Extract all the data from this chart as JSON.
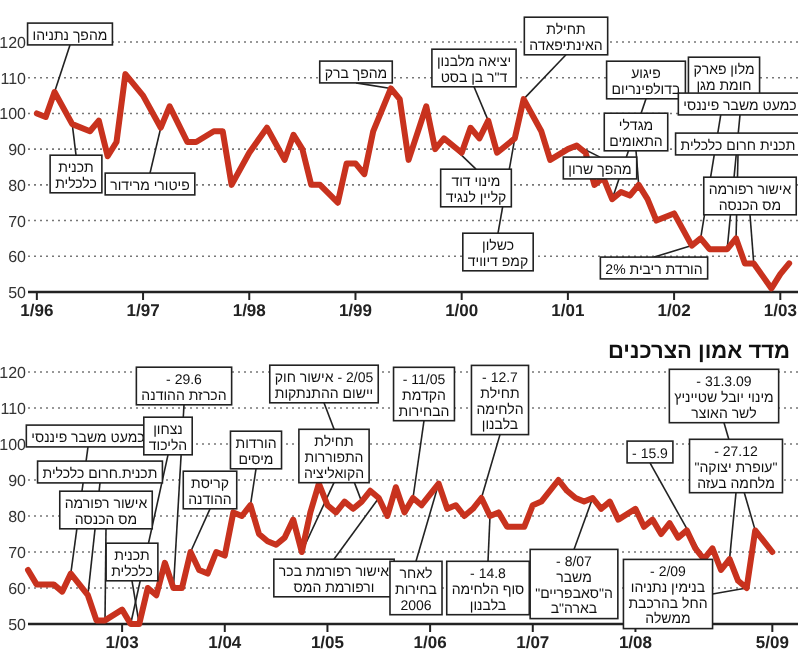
{
  "chart_data": [
    {
      "type": "line",
      "line_style": "solid",
      "marker": "none",
      "grid": "y",
      "xlim": [
        "1995-12",
        "2003-03"
      ],
      "ylim": [
        50,
        120
      ],
      "yticks": [
        50,
        60,
        70,
        80,
        90,
        100,
        110,
        120
      ],
      "xticks": [
        {
          "value": "1996-01",
          "label": "1/96"
        },
        {
          "value": "1997-01",
          "label": "1/97"
        },
        {
          "value": "1998-01",
          "label": "1/98"
        },
        {
          "value": "1999-01",
          "label": "1/99"
        },
        {
          "value": "2000-01",
          "label": "1/00"
        },
        {
          "value": "2001-01",
          "label": "1/01"
        },
        {
          "value": "2002-01",
          "label": "1/02"
        },
        {
          "value": "2003-01",
          "label": "1/03"
        }
      ],
      "x": [
        "1996-01",
        "1996-02",
        "1996-03",
        "1996-05",
        "1996-07",
        "1996-08",
        "1996-09",
        "1996-10",
        "1996-11",
        "1997-01",
        "1997-03",
        "1997-04",
        "1997-05",
        "1997-06",
        "1997-07",
        "1997-09",
        "1997-10",
        "1997-11",
        "1998-01",
        "1998-03",
        "1998-05",
        "1998-06",
        "1998-07",
        "1998-08",
        "1998-09",
        "1998-11",
        "1998-12",
        "1999-01",
        "1999-02",
        "1999-03",
        "1999-05",
        "1999-06",
        "1999-07",
        "1999-09",
        "1999-10",
        "1999-11",
        "2000-01",
        "2000-02",
        "2000-03",
        "2000-04",
        "2000-05",
        "2000-07",
        "2000-08",
        "2000-10",
        "2000-11",
        "2001-01",
        "2001-02",
        "2001-03",
        "2001-04",
        "2001-05",
        "2001-06",
        "2001-07",
        "2001-08",
        "2001-09",
        "2001-10",
        "2001-11",
        "2002-01",
        "2002-03",
        "2002-04",
        "2002-05",
        "2002-07",
        "2002-08",
        "2002-09",
        "2002-10",
        "2002-12",
        "2003-01",
        "2003-02"
      ],
      "series": [
        {
          "color": "#c8321e",
          "values": [
            100,
            99,
            106,
            97,
            95,
            98,
            88,
            92,
            111,
            105,
            96,
            102,
            97,
            92,
            92,
            95,
            95,
            80,
            89,
            96,
            87,
            94,
            90,
            80,
            80,
            75,
            86,
            86,
            83,
            95,
            107,
            104,
            87,
            102,
            90,
            93,
            89,
            96,
            93,
            98,
            89,
            93,
            104,
            95,
            87,
            90,
            91,
            89,
            80,
            82,
            76,
            78,
            77,
            80,
            76,
            70,
            72,
            63,
            65,
            62,
            62,
            65,
            58,
            58,
            51,
            55,
            58
          ]
        }
      ],
      "annotations": [
        {
          "text": "מהפך נתניהו",
          "x": "1996-03",
          "y": 106
        },
        {
          "text": "תכנית\nכלכלית",
          "x": "1996-05",
          "y": 97
        },
        {
          "text": "פיטורי מרידור",
          "x": "1997-03",
          "y": 96
        },
        {
          "text": "מהפך ברק",
          "x": "1999-05",
          "y": 107
        },
        {
          "text": "יציאה מלבנון\nד\"ר בן בסט",
          "x": "2000-04",
          "y": 98
        },
        {
          "text": "מינוי דוד\nקליין לנגיד",
          "x": "1999-11",
          "y": 93
        },
        {
          "text": "כשלון\nקמפ דיוויד",
          "x": "2000-07",
          "y": 93
        },
        {
          "text": "תחילת\nהאינתיפאדה",
          "x": "2000-08",
          "y": 104
        },
        {
          "text": "מהפך שרון",
          "x": "2001-02",
          "y": 91
        },
        {
          "text": "פיגוע\nבדולפינריום",
          "x": "2001-06",
          "y": 76
        },
        {
          "text": "מגדלי\nהתאומים",
          "x": "2001-09",
          "y": 80
        },
        {
          "text": "מלון פארק\nחומת מגן",
          "x": "2002-04",
          "y": 65
        },
        {
          "text": "הורדת ריבית 2%",
          "x": "2002-03",
          "y": 63
        },
        {
          "text": "כמעט משבר פיננסי",
          "x": "2002-07",
          "y": 62
        },
        {
          "text": "תכנית חרום כלכלית",
          "x": "2002-08",
          "y": 65
        },
        {
          "text": "אישור רפורמה\nמס הכנסה",
          "x": "2002-10",
          "y": 58
        }
      ]
    },
    {
      "type": "line",
      "line_style": "solid",
      "marker": "none",
      "grid": "y",
      "title": "מדד אמון הצרכנים",
      "xlim": [
        "2002-02",
        "2009-08"
      ],
      "ylim": [
        50,
        120
      ],
      "yticks": [
        50,
        60,
        70,
        80,
        90,
        100,
        110,
        120
      ],
      "xticks": [
        {
          "value": "2003-01",
          "label": "1/03"
        },
        {
          "value": "2004-01",
          "label": "1/04"
        },
        {
          "value": "2005-01",
          "label": "1/05"
        },
        {
          "value": "2006-01",
          "label": "1/06"
        },
        {
          "value": "2007-01",
          "label": "1/07"
        },
        {
          "value": "2008-01",
          "label": "1/08"
        },
        {
          "value": "2009-05",
          "label": "5/09"
        }
      ],
      "x": [
        "2002-02",
        "2002-03",
        "2002-04",
        "2002-05",
        "2002-06",
        "2002-07",
        "2002-08",
        "2002-09",
        "2002-10",
        "2002-11",
        "2003-01",
        "2003-02",
        "2003-03",
        "2003-04",
        "2003-05",
        "2003-06",
        "2003-07",
        "2003-08",
        "2003-09",
        "2003-10",
        "2003-11",
        "2003-12",
        "2004-01",
        "2004-02",
        "2004-03",
        "2004-04",
        "2004-05",
        "2004-06",
        "2004-07",
        "2004-08",
        "2004-09",
        "2004-10",
        "2004-11",
        "2004-12",
        "2005-01",
        "2005-02",
        "2005-03",
        "2005-04",
        "2005-05",
        "2005-06",
        "2005-07",
        "2005-08",
        "2005-09",
        "2005-10",
        "2005-11",
        "2005-12",
        "2006-02",
        "2006-03",
        "2006-04",
        "2006-05",
        "2006-06",
        "2006-07",
        "2006-08",
        "2006-09",
        "2006-10",
        "2006-12",
        "2007-01",
        "2007-02",
        "2007-04",
        "2007-05",
        "2007-06",
        "2007-07",
        "2007-08",
        "2007-09",
        "2007-10",
        "2007-11",
        "2008-01",
        "2008-02",
        "2008-03",
        "2008-04",
        "2008-05",
        "2008-06",
        "2008-07",
        "2008-08",
        "2008-09",
        "2008-10",
        "2008-11",
        "2008-12",
        "2009-01",
        "2009-02",
        "2009-03",
        "2009-05"
      ],
      "series": [
        {
          "color": "#c8321e",
          "values": [
            65,
            61,
            61,
            61,
            59,
            64,
            61,
            58,
            51,
            51,
            54,
            50,
            50,
            60,
            58,
            67,
            60,
            60,
            70,
            65,
            64,
            70,
            69,
            81,
            80,
            83,
            75,
            73,
            72,
            74,
            79,
            70,
            81,
            89,
            83,
            81,
            84,
            82,
            84,
            87,
            85,
            80,
            88,
            81,
            85,
            83,
            89,
            82,
            83,
            80,
            82,
            85,
            80,
            81,
            77,
            77,
            83,
            84,
            90,
            87,
            85,
            84,
            85,
            82,
            84,
            79,
            82,
            77,
            79,
            75,
            78,
            74,
            76,
            71,
            68,
            71,
            65,
            68,
            62,
            60,
            76,
            70
          ]
        }
      ],
      "annotations": [
        {
          "text": "כמעט משבר פיננסי",
          "x": "2002-07",
          "y": 64
        },
        {
          "text": "תכנית.חרום כלכלית",
          "x": "2002-09",
          "y": 58
        },
        {
          "text": "אישור רפורמה\nמס הכנסה",
          "x": "2002-11",
          "y": 51
        },
        {
          "text": "29.6 -\nהכרזת ההודנה",
          "x": "2003-07",
          "y": 60
        },
        {
          "text": "נצחון\nהליכוד",
          "x": "2003-02",
          "y": 50
        },
        {
          "text": "תכנית\nכלכלית",
          "x": "2003-03",
          "y": 50
        },
        {
          "text": "קריסת\nההודנה",
          "x": "2003-09",
          "y": 70
        },
        {
          "text": "הורדות\nמיסים",
          "x": "2004-04",
          "y": 83
        },
        {
          "text": "2/05 - אישור חוק\nיישום ההתנתקות",
          "x": "2005-05",
          "y": 84
        },
        {
          "text": "תחילת\nהתפוררות\nהקואליציה",
          "x": "2004-10",
          "y": 70
        },
        {
          "text": "אישור רפורמת בכר\nורפורמת המס",
          "x": "2005-07",
          "y": 85
        },
        {
          "text": "11/05 -\nהקדמת\nהבחירות",
          "x": "2005-11",
          "y": 85
        },
        {
          "text": "לאחר\nבחירות\n2006",
          "x": "2006-02",
          "y": 89
        },
        {
          "text": "12.7 -\nתחילת\nהלחימה\nבלבנון",
          "x": "2006-07",
          "y": 85
        },
        {
          "text": "14.8 -\nסוף הלחימה\nבלבנון",
          "x": "2006-08",
          "y": 80
        },
        {
          "text": "8/07 -\nמשבר\nה\"סאבפריים\"\nבארה\"ב",
          "x": "2007-08",
          "y": 85
        },
        {
          "text": "15.9 -",
          "x": "2008-09",
          "y": 68
        },
        {
          "text": "31.3.09 -\nמינוי יובל שטייניץ\nלשר האוצר",
          "x": "2009-03",
          "y": 76
        },
        {
          "text": "27.12 -\n\"עופרת יצוקה\"\nמלחמה בעזה",
          "x": "2008-12",
          "y": 68
        },
        {
          "text": "2/09 -\nבנימין נתניהו\nהחל בהרכבת\nממשלה",
          "x": "2009-02",
          "y": 60
        }
      ]
    }
  ]
}
